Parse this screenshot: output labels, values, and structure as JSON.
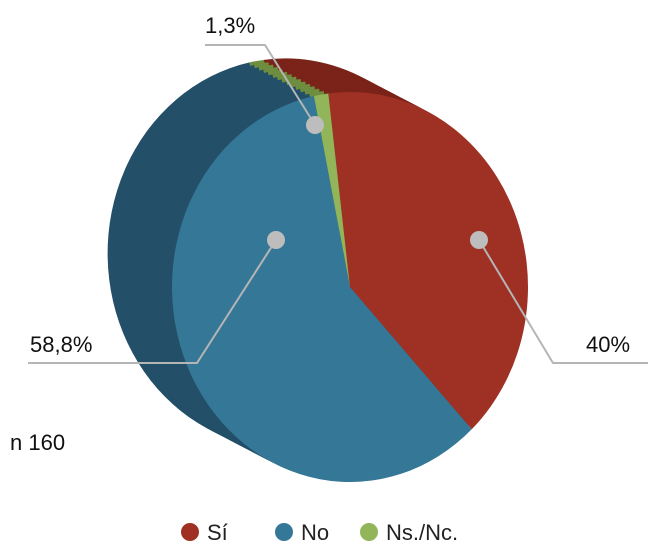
{
  "chart_data": {
    "type": "pie",
    "sample_label": "n 160",
    "labels": [
      "Sí",
      "No",
      "Ns./Nc."
    ],
    "values": [
      40.0,
      58.8,
      1.3
    ],
    "data_labels": [
      "40%",
      "58,8%",
      "1,3%"
    ],
    "colors": [
      "#9e3124",
      "#357797",
      "#93b55a"
    ],
    "side_colors": [
      "#7a2319",
      "#234f68",
      "#6f8d3e"
    ],
    "legend": [
      "Sí",
      "No",
      "Ns./Nc."
    ],
    "legend_position": "bottom",
    "style": "3d-tilted"
  }
}
